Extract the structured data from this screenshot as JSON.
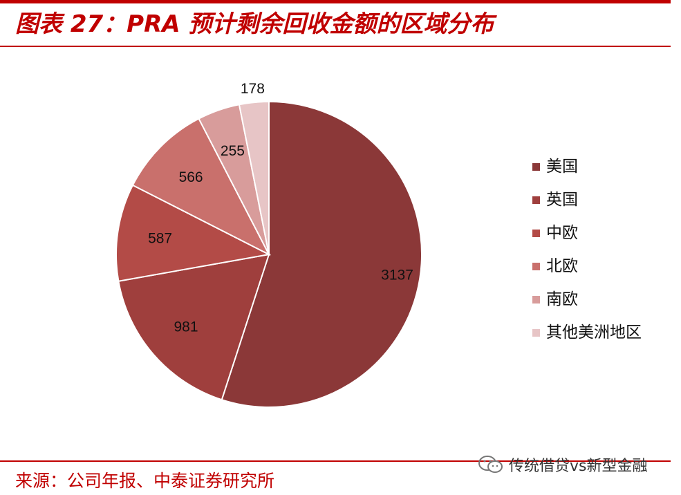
{
  "header": {
    "title": "图表 27：PRA 预计剩余回收金额的区域分布"
  },
  "chart_data": {
    "type": "pie",
    "categories": [
      "美国",
      "英国",
      "中欧",
      "北欧",
      "南欧",
      "其他美洲地区"
    ],
    "values": [
      3137,
      981,
      587,
      566,
      255,
      178
    ],
    "colors": [
      "#8b3838",
      "#9f3f3d",
      "#b34b47",
      "#c9706c",
      "#d89c9b",
      "#e7c5c6"
    ],
    "start": "12 o'clock, clockwise",
    "legend_position": "right"
  },
  "footer": {
    "source": "来源：公司年报、中泰证券研究所",
    "watermark": "传统借贷vs新型金融",
    "watermark_icon": "wechat-icon"
  }
}
